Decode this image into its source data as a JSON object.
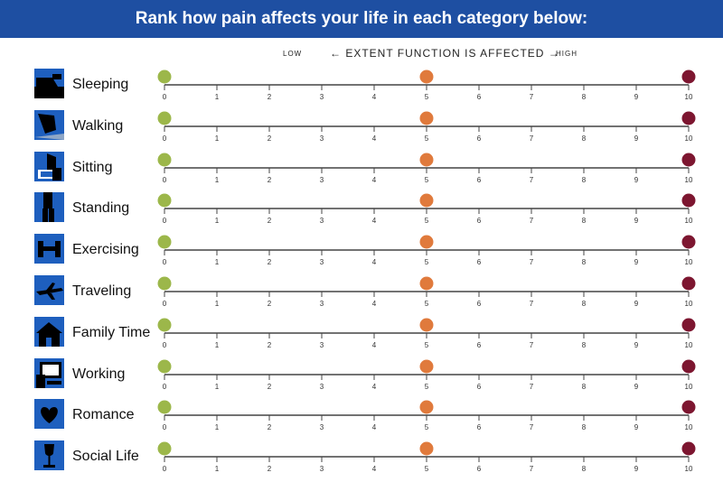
{
  "title": "Rank how pain affects your life in each category below:",
  "axis_legend": {
    "low": "LOW",
    "middle": "← EXTENT FUNCTION IS AFFECTED →",
    "high": "HIGH"
  },
  "scale": {
    "ticks": [
      "0",
      "1",
      "2",
      "3",
      "4",
      "5",
      "6",
      "7",
      "8",
      "9",
      "10"
    ],
    "markers": [
      {
        "value": 0,
        "color": "#9cb74a"
      },
      {
        "value": 5,
        "color": "#e07a3c"
      },
      {
        "value": 10,
        "color": "#7d1630"
      }
    ]
  },
  "colors": {
    "banner": "#1e4fa2",
    "icon_tile": "#1e5fbe",
    "axis_line": "#444444"
  },
  "categories": [
    {
      "label": "Sleeping",
      "icon": "bed-icon"
    },
    {
      "label": "Walking",
      "icon": "walking-icon"
    },
    {
      "label": "Sitting",
      "icon": "chair-icon"
    },
    {
      "label": "Standing",
      "icon": "standing-person-icon"
    },
    {
      "label": "Exercising",
      "icon": "dumbbell-icon"
    },
    {
      "label": "Traveling",
      "icon": "airplane-icon"
    },
    {
      "label": "Family Time",
      "icon": "house-icon"
    },
    {
      "label": "Working",
      "icon": "computer-icon"
    },
    {
      "label": "Romance",
      "icon": "heart-icon"
    },
    {
      "label": "Social Life",
      "icon": "wine-glass-icon"
    }
  ]
}
